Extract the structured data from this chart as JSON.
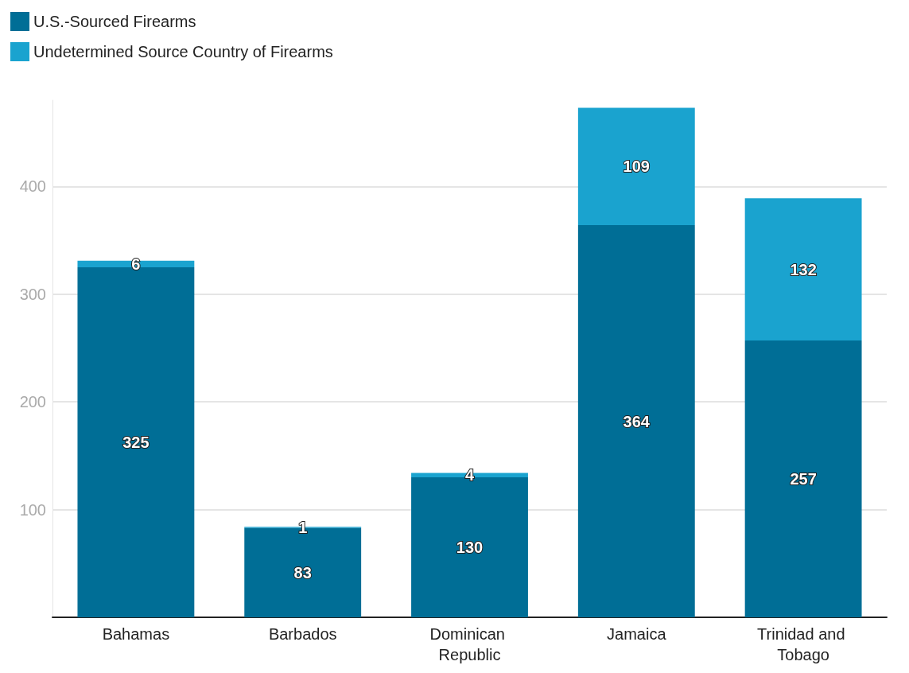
{
  "chart_data": {
    "type": "bar",
    "stacked": true,
    "categories": [
      "Bahamas",
      "Barbados",
      "Dominican Republic",
      "Jamaica",
      "Trinidad and Tobago"
    ],
    "series": [
      {
        "name": "U.S.-Sourced Firearms",
        "color": "#006e96",
        "values": [
          325,
          83,
          130,
          364,
          257
        ]
      },
      {
        "name": "Undetermined Source Country of Firearms",
        "color": "#1aa3cf",
        "values": [
          6,
          1,
          4,
          109,
          132
        ]
      }
    ],
    "ylim": [
      0,
      480
    ],
    "yticks": [
      100,
      200,
      300,
      400
    ],
    "grid": "y",
    "legend": "top left",
    "data_labels": true
  }
}
